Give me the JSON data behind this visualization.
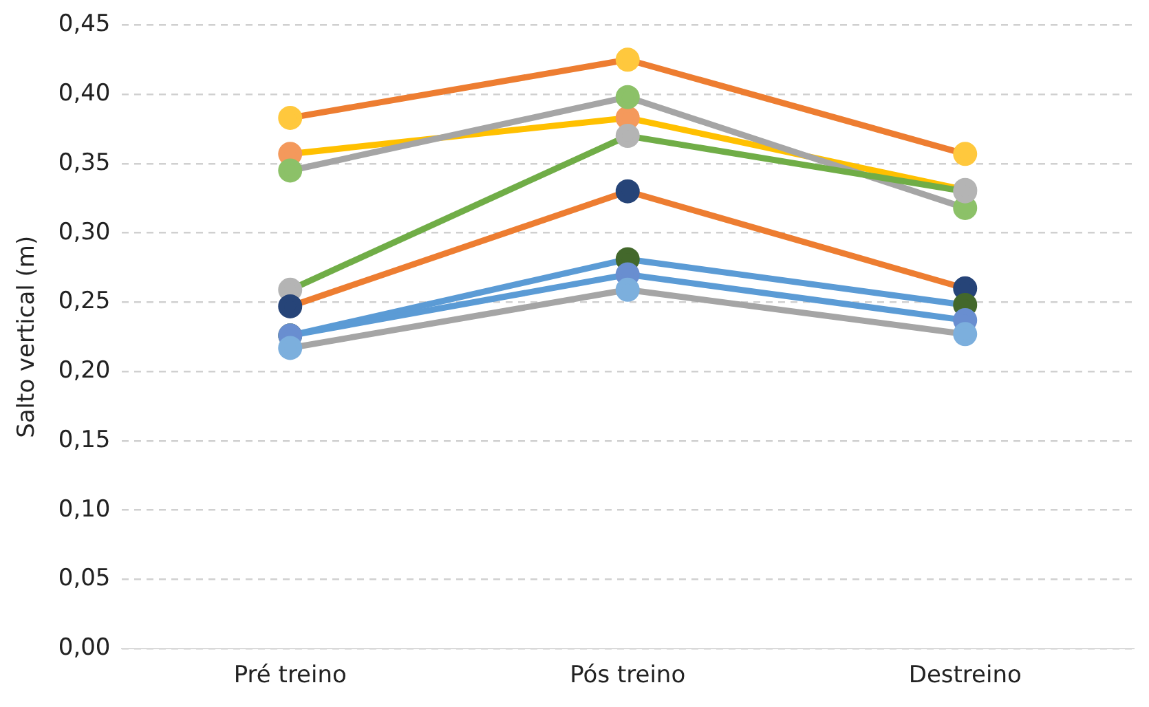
{
  "chart_data": {
    "type": "line",
    "ylabel": "Salto vertical (m)",
    "categories": [
      "Pré treino",
      "Pós treino",
      "Destreino"
    ],
    "series": [
      {
        "color": "#ed7d31",
        "colors": [
          "#ffc83d",
          "#ffc83d",
          "#ffc83d"
        ],
        "values": [
          0.383,
          0.425,
          0.357
        ]
      },
      {
        "color": "#ffc000",
        "colors": [
          "#f4995c",
          "#f4995c",
          "#b4b4b4"
        ],
        "values": [
          0.357,
          0.383,
          0.331
        ]
      },
      {
        "color": "#a5a5a5",
        "colors": [
          "#8cc168",
          "#8cc168",
          "#8cc168"
        ],
        "values": [
          0.345,
          0.398,
          0.318
        ]
      },
      {
        "color": "#70ad47",
        "colors": [
          "#b4b4b4",
          "#b4b4b4",
          "#b4b4b4"
        ],
        "values": [
          0.259,
          0.37,
          0.33
        ]
      },
      {
        "color": "#ed7d31",
        "colors": [
          "#264478",
          "#264478",
          "#264478"
        ],
        "values": [
          0.247,
          0.33,
          0.26
        ]
      },
      {
        "color": "#5b9bd5",
        "colors": [
          "#43682b",
          "#43682b",
          "#43682b"
        ],
        "values": [
          0.226,
          0.281,
          0.248
        ]
      },
      {
        "color": "#5b9bd5",
        "colors": [
          "#698ed0",
          "#698ed0",
          "#698ed0"
        ],
        "values": [
          0.226,
          0.27,
          0.237
        ]
      },
      {
        "color": "#a5a5a5",
        "colors": [
          "#7cafdd",
          "#7cafdd",
          "#7cafdd"
        ],
        "values": [
          0.217,
          0.259,
          0.227
        ]
      }
    ],
    "ylim": [
      0,
      0.45
    ],
    "yticks": [
      {
        "value": 0,
        "label": "0,00"
      },
      {
        "value": 0.05,
        "label": "0,05"
      },
      {
        "value": 0.1,
        "label": "0,10"
      },
      {
        "value": 0.15,
        "label": "0,15"
      },
      {
        "value": 0.2,
        "label": "0,20"
      },
      {
        "value": 0.25,
        "label": "0,25"
      },
      {
        "value": 0.3,
        "label": "0,30"
      },
      {
        "value": 0.35,
        "label": "0,35"
      },
      {
        "value": 0.4,
        "label": "0,40"
      },
      {
        "value": 0.45,
        "label": "0,45"
      }
    ],
    "grid": "y",
    "legend": false,
    "marker": "circle",
    "line_style": "solid"
  }
}
